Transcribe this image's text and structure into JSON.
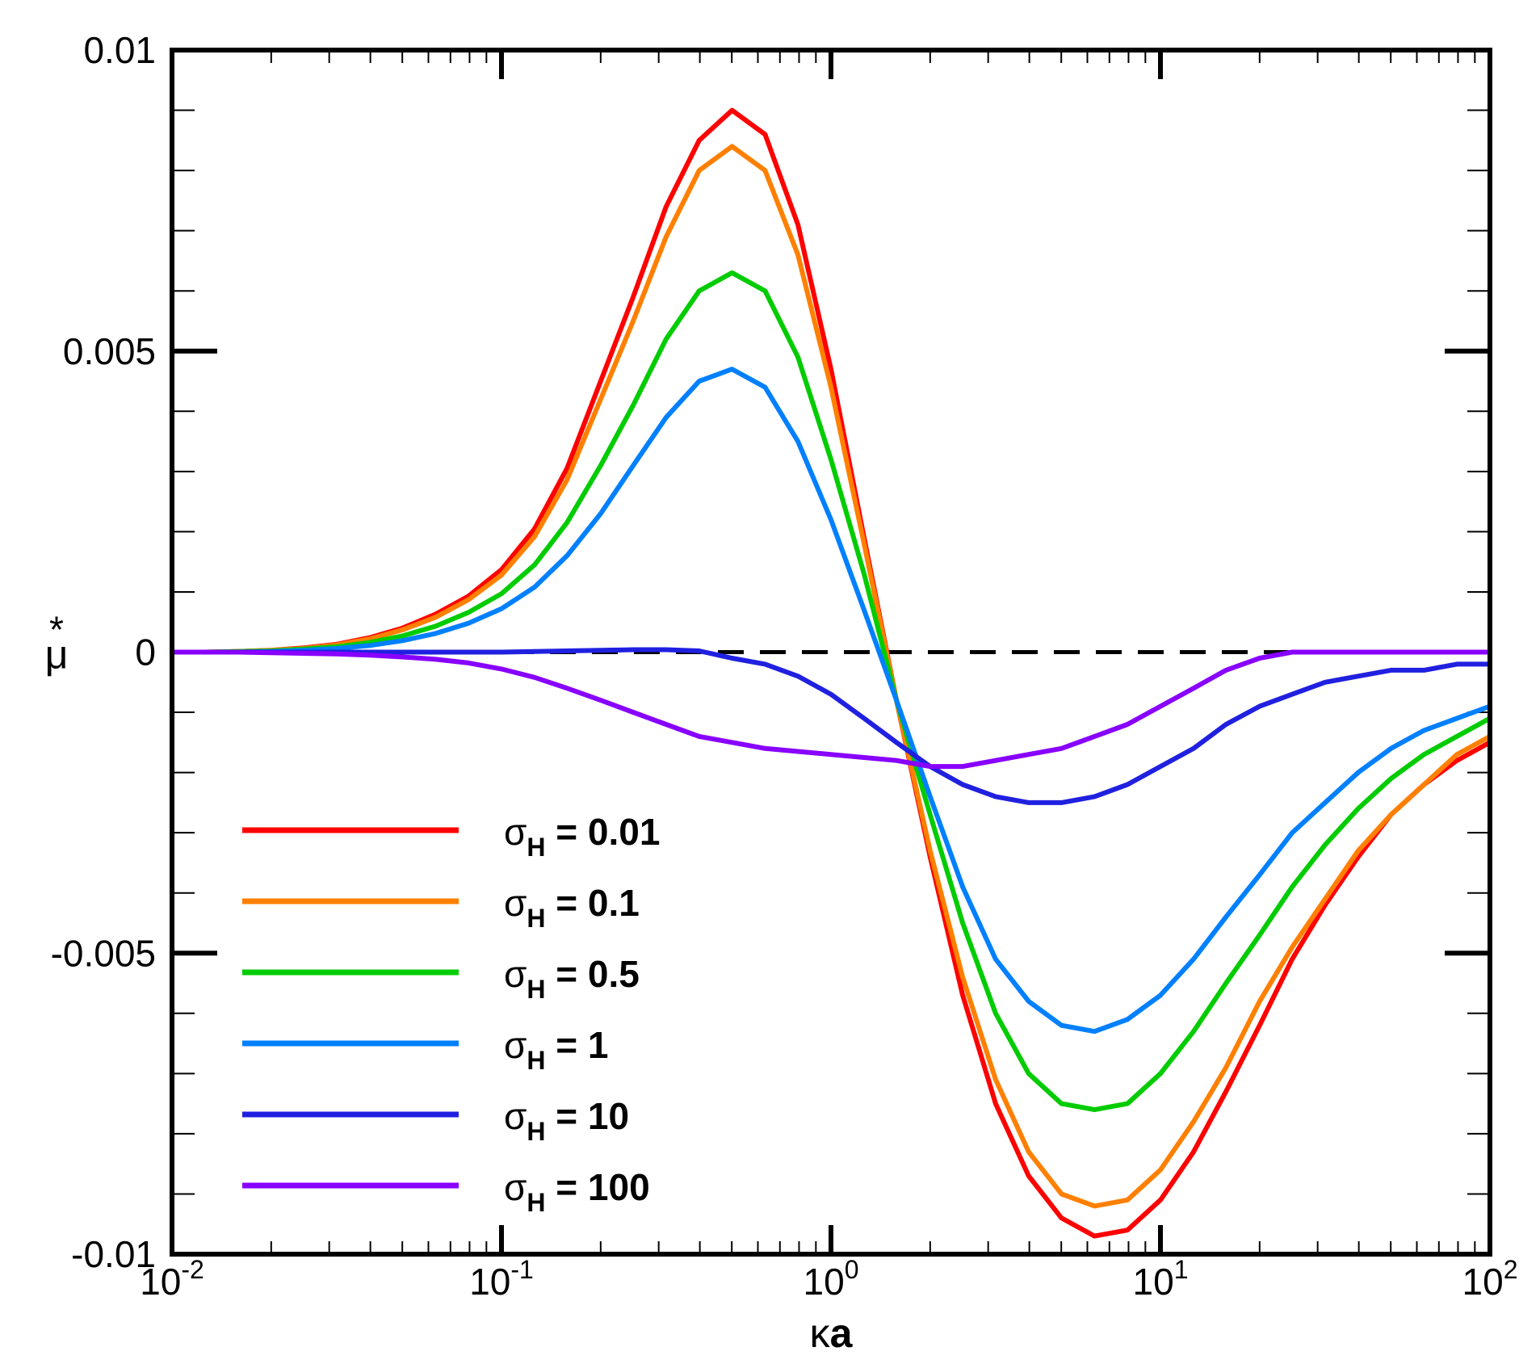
{
  "chart_data": {
    "type": "line",
    "title": "",
    "xlabel": {
      "greek": "κ",
      "symbol": "a"
    },
    "ylabel": {
      "greek": "μ",
      "superscript": "*"
    },
    "x_scale": "log",
    "xlim": [
      0.01,
      100
    ],
    "ylim": [
      -0.01,
      0.01
    ],
    "x_ticks": [
      {
        "value": 0.01,
        "base": "10",
        "exp": "-2"
      },
      {
        "value": 0.1,
        "base": "10",
        "exp": "-1"
      },
      {
        "value": 1,
        "base": "10",
        "exp": "0"
      },
      {
        "value": 10,
        "base": "10",
        "exp": "1"
      },
      {
        "value": 100,
        "base": "10",
        "exp": "2"
      }
    ],
    "y_ticks": [
      {
        "value": 0.01,
        "label": "0.01"
      },
      {
        "value": 0.005,
        "label": "0.005"
      },
      {
        "value": 0,
        "label": "0"
      },
      {
        "value": -0.005,
        "label": "-0.005"
      },
      {
        "value": -0.01,
        "label": "-0.01"
      }
    ],
    "reference_line": {
      "y": 0,
      "style": "dashed",
      "color": "#000000"
    },
    "legend_position": "lower-left",
    "legend_symbol": "σ",
    "legend_subscript": "H",
    "x": [
      0.01,
      0.0126,
      0.0158,
      0.02,
      0.0251,
      0.0316,
      0.0398,
      0.0501,
      0.0631,
      0.0794,
      0.1,
      0.126,
      0.158,
      0.2,
      0.251,
      0.316,
      0.398,
      0.501,
      0.631,
      0.794,
      1,
      1.26,
      1.58,
      2,
      2.51,
      3.16,
      3.98,
      5.01,
      6.31,
      7.94,
      10,
      12.6,
      15.8,
      20,
      25.1,
      31.6,
      39.8,
      50.1,
      63.1,
      79.4,
      100
    ],
    "series": [
      {
        "name": "σH = 0.01",
        "label_value": "0.01",
        "color": "#ff0000",
        "values": [
          0,
          0,
          1e-05,
          3e-05,
          7e-05,
          0.00013,
          0.00024,
          0.0004,
          0.00063,
          0.00093,
          0.00137,
          0.00205,
          0.00305,
          0.0045,
          0.0059,
          0.0074,
          0.0085,
          0.009,
          0.0086,
          0.0071,
          0.0047,
          0.0019,
          -0.0008,
          -0.0034,
          -0.0057,
          -0.0075,
          -0.0087,
          -0.0094,
          -0.0097,
          -0.0096,
          -0.0091,
          -0.0083,
          -0.0073,
          -0.0062,
          -0.0051,
          -0.0042,
          -0.0034,
          -0.0027,
          -0.0022,
          -0.0018,
          -0.0015
        ]
      },
      {
        "name": "σH = 0.1",
        "label_value": "0.1",
        "color": "#ff8000",
        "values": [
          0,
          0,
          1e-05,
          3e-05,
          6e-05,
          0.00012,
          0.00022,
          0.00037,
          0.00058,
          0.00087,
          0.00128,
          0.00192,
          0.00286,
          0.0042,
          0.0055,
          0.0069,
          0.008,
          0.0084,
          0.008,
          0.0066,
          0.0044,
          0.0018,
          -0.0008,
          -0.0033,
          -0.0054,
          -0.0071,
          -0.0083,
          -0.009,
          -0.0092,
          -0.0091,
          -0.0086,
          -0.0078,
          -0.0069,
          -0.0058,
          -0.0049,
          -0.0041,
          -0.0033,
          -0.0027,
          -0.0022,
          -0.0017,
          -0.0014
        ]
      },
      {
        "name": "σH = 0.5",
        "label_value": "0.5",
        "color": "#00cc00",
        "values": [
          0,
          0,
          1e-05,
          2e-05,
          5e-05,
          9e-05,
          0.00016,
          0.00027,
          0.00043,
          0.00066,
          0.00097,
          0.00145,
          0.00215,
          0.0031,
          0.0041,
          0.0052,
          0.006,
          0.0063,
          0.006,
          0.0049,
          0.0032,
          0.0013,
          -0.0008,
          -0.0027,
          -0.0045,
          -0.006,
          -0.007,
          -0.0075,
          -0.0076,
          -0.0075,
          -0.007,
          -0.0063,
          -0.0055,
          -0.0047,
          -0.0039,
          -0.0032,
          -0.0026,
          -0.0021,
          -0.0017,
          -0.0014,
          -0.0011
        ]
      },
      {
        "name": "σH = 1",
        "label_value": "1",
        "color": "#0080ff",
        "values": [
          0,
          0,
          0,
          1e-05,
          3e-05,
          6e-05,
          0.00011,
          0.00019,
          0.00031,
          0.00048,
          0.00072,
          0.00108,
          0.0016,
          0.0023,
          0.0031,
          0.0039,
          0.0045,
          0.0047,
          0.0044,
          0.0035,
          0.0022,
          0.0007,
          -0.0008,
          -0.0024,
          -0.0039,
          -0.0051,
          -0.0058,
          -0.0062,
          -0.0063,
          -0.0061,
          -0.0057,
          -0.0051,
          -0.0044,
          -0.0037,
          -0.003,
          -0.0025,
          -0.002,
          -0.0016,
          -0.0013,
          -0.0011,
          -0.0009
        ]
      },
      {
        "name": "σH = 10",
        "label_value": "10",
        "color": "#2020e0",
        "values": [
          0,
          0,
          0,
          0,
          0,
          0,
          0,
          0,
          0,
          0,
          0,
          1e-05,
          2e-05,
          3e-05,
          4e-05,
          4e-05,
          2e-05,
          -0.0001,
          -0.0002,
          -0.0004,
          -0.0007,
          -0.0011,
          -0.0015,
          -0.0019,
          -0.0022,
          -0.0024,
          -0.0025,
          -0.0025,
          -0.0024,
          -0.0022,
          -0.0019,
          -0.0016,
          -0.0012,
          -0.0009,
          -0.0007,
          -0.0005,
          -0.0004,
          -0.0003,
          -0.0003,
          -0.0002,
          -0.0002
        ]
      },
      {
        "name": "σH = 100",
        "label_value": "100",
        "color": "#8800ff",
        "values": [
          0,
          0,
          0,
          -1e-05,
          -2e-05,
          -3e-05,
          -5e-05,
          -8e-05,
          -0.00012,
          -0.00018,
          -0.00028,
          -0.00042,
          -0.0006,
          -0.0008,
          -0.001,
          -0.0012,
          -0.0014,
          -0.0015,
          -0.0016,
          -0.00165,
          -0.0017,
          -0.00175,
          -0.0018,
          -0.0019,
          -0.0019,
          -0.0018,
          -0.0017,
          -0.0016,
          -0.0014,
          -0.0012,
          -0.0009,
          -0.0006,
          -0.0003,
          -0.0001,
          0,
          0,
          0,
          0,
          0,
          0,
          0
        ]
      }
    ]
  }
}
